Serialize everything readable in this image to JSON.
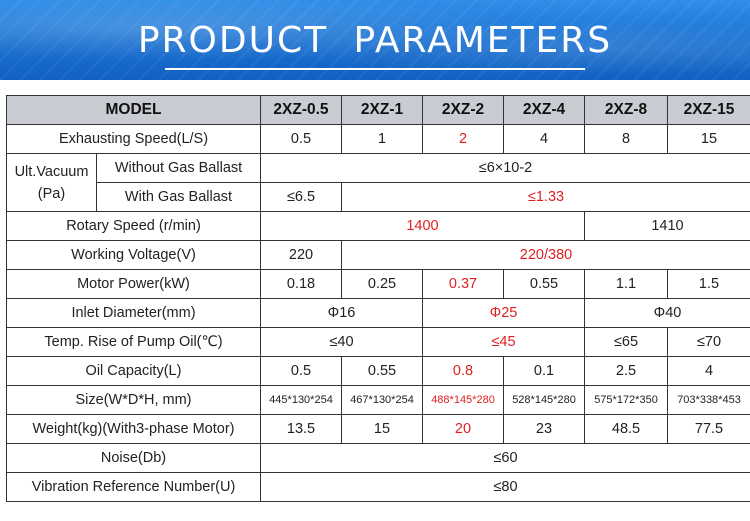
{
  "header": {
    "title": "PRODUCT  PARAMETERS"
  },
  "colors": {
    "banner": "#1a6fd0",
    "highlight": "#e02020",
    "header_row": "#c9ccd2"
  },
  "table": {
    "model_label": "MODEL",
    "models": [
      "2XZ-0.5",
      "2XZ-1",
      "2XZ-2",
      "2XZ-4",
      "2XZ-8",
      "2XZ-15"
    ],
    "exhausting_speed": {
      "label": "Exhausting Speed(L/S)",
      "values": [
        "0.5",
        "1",
        "2",
        "4",
        "8",
        "15"
      ]
    },
    "ult_vacuum": {
      "label_line1": "Ult.Vacuum",
      "label_line2": "(Pa)",
      "without_label": "Without Gas Ballast",
      "without_value": "≤6×10-2",
      "with_label": "With Gas Ballast",
      "with_first": "≤6.5",
      "with_rest": "≤1.33"
    },
    "rotary_speed": {
      "label": "Rotary Speed (r/min)",
      "value_a": "1400",
      "value_b": "1410"
    },
    "working_voltage": {
      "label": "Working Voltage(V)",
      "value_a": "220",
      "value_b": "220/380"
    },
    "motor_power": {
      "label": "Motor Power(kW)",
      "values": [
        "0.18",
        "0.25",
        "0.37",
        "0.55",
        "1.1",
        "1.5"
      ]
    },
    "inlet_diameter": {
      "label": "Inlet Diameter(mm)",
      "value_a": "Φ16",
      "value_b": "Φ25",
      "value_c": "Φ40"
    },
    "temp_rise": {
      "label": "Temp. Rise of Pump Oil(℃)",
      "value_a": "≤40",
      "value_b": "≤45",
      "value_c": "≤65",
      "value_d": "≤70"
    },
    "oil_capacity": {
      "label": "Oil Capacity(L)",
      "values": [
        "0.5",
        "0.55",
        "0.8",
        "0.1",
        "2.5",
        "4"
      ]
    },
    "size": {
      "label": "Size(W*D*H, mm)",
      "values": [
        "445*130*254",
        "467*130*254",
        "488*145*280",
        "528*145*280",
        "575*172*350",
        "703*338*453"
      ]
    },
    "weight": {
      "label": "Weight(kg)(With3-phase Motor)",
      "values": [
        "13.5",
        "15",
        "20",
        "23",
        "48.5",
        "77.5"
      ]
    },
    "noise": {
      "label": "Noise(Db)",
      "value": "≤60"
    },
    "vibration": {
      "label": "Vibration Reference Number(U)",
      "value": "≤80"
    }
  }
}
